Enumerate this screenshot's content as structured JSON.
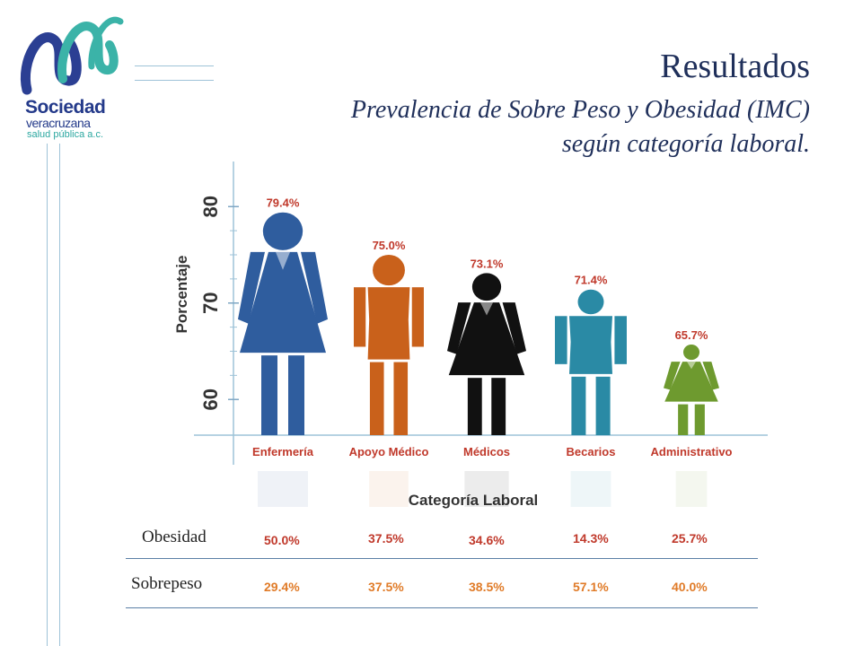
{
  "header": {
    "title": "Resultados",
    "subtitle_line1": "Prevalencia de Sobre Peso y Obesidad (IMC)",
    "subtitle_line2": "según categoría laboral."
  },
  "logo": {
    "line1": "Sociedad",
    "line2": "veracruzana",
    "line3": "salud pública a.c."
  },
  "chart_data": {
    "type": "bar",
    "xlabel": "Categoría Laboral",
    "ylabel": "Porcentaje",
    "ylim": [
      56.3,
      83
    ],
    "yticks": [
      60,
      70,
      80
    ],
    "categories": [
      "Enfermería",
      "Apoyo Médico",
      "Médicos",
      "Becarios",
      "Administrativo"
    ],
    "values": [
      79.4,
      75.0,
      73.1,
      71.4,
      65.7
    ],
    "value_labels": [
      "79.4%",
      "75.0%",
      "73.1%",
      "71.4%",
      "65.7%"
    ],
    "colors": [
      "#2f5d9e",
      "#c9611b",
      "#111111",
      "#2a8aa5",
      "#6e9a2f"
    ],
    "figure_types": [
      "woman",
      "man",
      "woman",
      "man",
      "woman"
    ],
    "grid": false,
    "legend": "none"
  },
  "table": {
    "rows": [
      {
        "label": "Obesidad",
        "values": [
          "50.0%",
          "37.5%",
          "34.6%",
          "14.3%",
          "25.7%"
        ]
      },
      {
        "label": "Sobrepeso",
        "values": [
          "29.4%",
          "37.5%",
          "38.5%",
          "57.1%",
          "40.0%"
        ]
      }
    ]
  }
}
